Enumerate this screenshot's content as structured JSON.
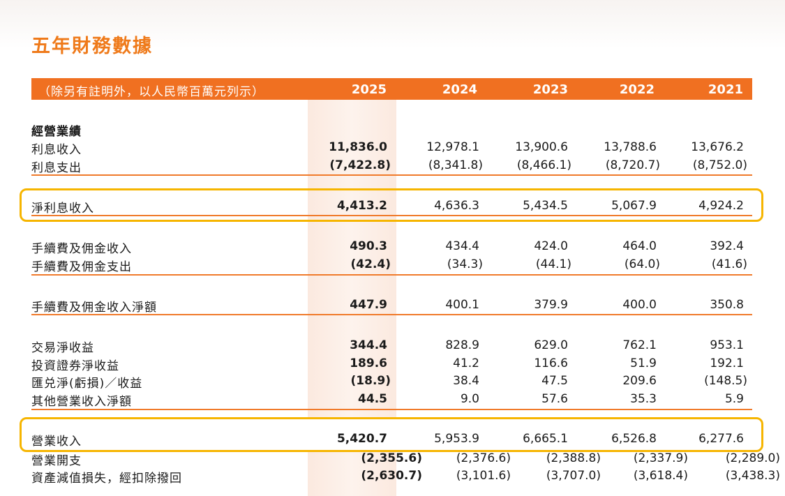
{
  "title": "五年財務數據",
  "header": {
    "caption": "（除另有註明外，以人民幣百萬元列示）",
    "years": [
      "2025",
      "2024",
      "2023",
      "2022",
      "2021"
    ]
  },
  "section": "經營業績",
  "rows": [
    {
      "label": "利息收入",
      "values": [
        "11,836.0",
        "12,978.1",
        "13,900.6",
        "13,788.6",
        "13,676.2"
      ]
    },
    {
      "label": "利息支出",
      "values": [
        "(7,422.8)",
        "(8,341.8)",
        "(8,466.1)",
        "(8,720.7)",
        "(8,752.0)"
      ]
    },
    {
      "label": "淨利息收入",
      "values": [
        "4,413.2",
        "4,636.3",
        "5,434.5",
        "5,067.9",
        "4,924.2"
      ]
    },
    {
      "label": "手續費及佣金收入",
      "values": [
        "490.3",
        "434.4",
        "424.0",
        "464.0",
        "392.4"
      ]
    },
    {
      "label": "手續費及佣金支出",
      "values": [
        "(42.4)",
        "(34.3)",
        "(44.1)",
        "(64.0)",
        "(41.6)"
      ]
    },
    {
      "label": "手續費及佣金收入淨額",
      "values": [
        "447.9",
        "400.1",
        "379.9",
        "400.0",
        "350.8"
      ]
    },
    {
      "label": "交易淨收益",
      "values": [
        "344.4",
        "828.9",
        "629.0",
        "762.1",
        "953.1"
      ]
    },
    {
      "label": "投資證券淨收益",
      "values": [
        "189.6",
        "41.2",
        "116.6",
        "51.9",
        "192.1"
      ]
    },
    {
      "label": "匯兑淨(虧損)／收益",
      "values": [
        "(18.9)",
        "38.4",
        "47.5",
        "209.6",
        "(148.5)"
      ]
    },
    {
      "label": "其他營業收入淨額",
      "values": [
        "44.5",
        "9.0",
        "57.6",
        "35.3",
        "5.9"
      ]
    },
    {
      "label": "營業收入",
      "values": [
        "5,420.7",
        "5,953.9",
        "6,665.1",
        "6,526.8",
        "6,277.6"
      ]
    },
    {
      "label": "營業開支",
      "values": [
        "(2,355.6)",
        "(2,376.6)",
        "(2,388.8)",
        "(2,337.9)",
        "(2,289.0)"
      ]
    },
    {
      "label": "資產減值損失，經扣除撥回",
      "values": [
        "(2,630.7)",
        "(3,101.6)",
        "(3,707.0)",
        "(3,618.4)",
        "(3,438.3)"
      ]
    }
  ]
}
